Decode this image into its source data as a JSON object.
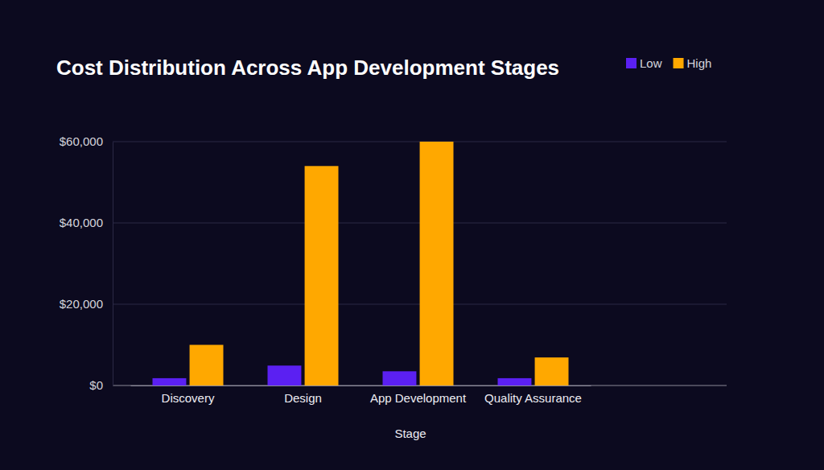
{
  "chart_data": {
    "type": "bar",
    "title": "Cost Distribution Across App Development Stages",
    "x_label": "Stage",
    "categories": [
      "Discovery",
      "Design",
      "App Development",
      "Quality Assurance"
    ],
    "series": [
      {
        "name": "Low",
        "color": "#5b20f2",
        "values": [
          1800,
          4900,
          3500,
          1800
        ]
      },
      {
        "name": "High",
        "color": "#ffa800",
        "values": [
          10000,
          54000,
          60000,
          6900
        ]
      }
    ],
    "ylim": [
      0,
      60000
    ],
    "yticks": [
      {
        "value": 0,
        "label": "$0"
      },
      {
        "value": 20000,
        "label": "$20,000"
      },
      {
        "value": 40000,
        "label": "$40,000"
      },
      {
        "value": 60000,
        "label": "$60,000"
      }
    ],
    "grid": true,
    "legend": "top-right"
  }
}
